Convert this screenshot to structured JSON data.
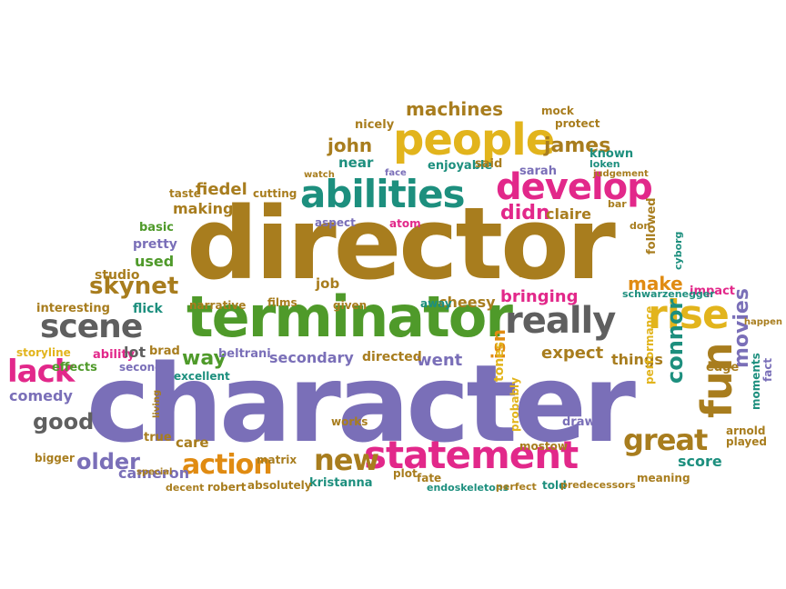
{
  "palette": {
    "brown": "#a87d1e",
    "purple": "#7a6fb8",
    "green": "#4f9a2a",
    "teal": "#1d8f7e",
    "magenta": "#e2288a",
    "orange": "#e08b12",
    "gold": "#e2b41c",
    "gray": "#5f5f5f",
    "lime": "#7ab020"
  },
  "words": [
    {
      "text": "character",
      "color": "purple"
    },
    {
      "text": "director",
      "color": "brown"
    },
    {
      "text": "terminator",
      "color": "green"
    },
    {
      "text": "people",
      "color": "gold"
    },
    {
      "text": "abilities",
      "color": "teal"
    },
    {
      "text": "develop",
      "color": "magenta"
    },
    {
      "text": "statement",
      "color": "magenta"
    },
    {
      "text": "really",
      "color": "gray"
    },
    {
      "text": "rise",
      "color": "gold"
    },
    {
      "text": "fun",
      "color": "brown"
    },
    {
      "text": "scene",
      "color": "gray"
    },
    {
      "text": "lack",
      "color": "magenta"
    },
    {
      "text": "action",
      "color": "orange"
    },
    {
      "text": "great",
      "color": "brown"
    },
    {
      "text": "new",
      "color": "brown"
    },
    {
      "text": "skynet",
      "color": "brown"
    },
    {
      "text": "machines",
      "color": "brown"
    },
    {
      "text": "john",
      "color": "brown"
    },
    {
      "text": "james",
      "color": "brown"
    },
    {
      "text": "connor",
      "color": "teal"
    },
    {
      "text": "movies",
      "color": "purple"
    },
    {
      "text": "make",
      "color": "orange"
    },
    {
      "text": "good",
      "color": "gray"
    },
    {
      "text": "older",
      "color": "purple"
    },
    {
      "text": "way",
      "color": "green"
    },
    {
      "text": "didn",
      "color": "magenta"
    },
    {
      "text": "claire",
      "color": "brown"
    },
    {
      "text": "fiedel",
      "color": "brown"
    },
    {
      "text": "making",
      "color": "brown"
    },
    {
      "text": "bringing",
      "color": "magenta"
    },
    {
      "text": "expect",
      "color": "brown"
    },
    {
      "text": "things",
      "color": "brown"
    },
    {
      "text": "went",
      "color": "purple"
    },
    {
      "text": "secondary",
      "color": "purple"
    },
    {
      "text": "kristanna",
      "color": "teal"
    },
    {
      "text": "cameron",
      "color": "purple"
    },
    {
      "text": "comedy",
      "color": "purple"
    },
    {
      "text": "isn",
      "color": "orange"
    },
    {
      "text": "score",
      "color": "teal"
    },
    {
      "text": "nicely",
      "color": "brown"
    },
    {
      "text": "near",
      "color": "teal"
    },
    {
      "text": "enjoyable",
      "color": "teal"
    },
    {
      "text": "said",
      "color": "brown"
    },
    {
      "text": "mock",
      "color": "brown"
    },
    {
      "text": "protect",
      "color": "brown"
    },
    {
      "text": "known",
      "color": "teal"
    },
    {
      "text": "loken",
      "color": "teal"
    },
    {
      "text": "sarah",
      "color": "purple"
    },
    {
      "text": "taste",
      "color": "brown"
    },
    {
      "text": "cutting",
      "color": "brown"
    },
    {
      "text": "basic",
      "color": "green"
    },
    {
      "text": "pretty",
      "color": "purple"
    },
    {
      "text": "used",
      "color": "green"
    },
    {
      "text": "studio",
      "color": "brown"
    },
    {
      "text": "interesting",
      "color": "brown"
    },
    {
      "text": "flick",
      "color": "teal"
    },
    {
      "text": "narrative",
      "color": "brown"
    },
    {
      "text": "films",
      "color": "brown"
    },
    {
      "text": "job",
      "color": "brown"
    },
    {
      "text": "given",
      "color": "brown"
    },
    {
      "text": "cheesy",
      "color": "brown"
    },
    {
      "text": "away",
      "color": "teal"
    },
    {
      "text": "tones",
      "color": "gold"
    },
    {
      "text": "impact",
      "color": "magenta"
    },
    {
      "text": "edge",
      "color": "brown"
    },
    {
      "text": "storyline",
      "color": "gold"
    },
    {
      "text": "ability",
      "color": "magenta"
    },
    {
      "text": "effects",
      "color": "green"
    },
    {
      "text": "lot",
      "color": "gray"
    },
    {
      "text": "brad",
      "color": "brown"
    },
    {
      "text": "second",
      "color": "purple"
    },
    {
      "text": "excellent",
      "color": "teal"
    },
    {
      "text": "beltrani",
      "color": "purple"
    },
    {
      "text": "directed",
      "color": "brown"
    },
    {
      "text": "care",
      "color": "brown"
    },
    {
      "text": "true",
      "color": "brown"
    },
    {
      "text": "works",
      "color": "brown"
    },
    {
      "text": "matrix",
      "color": "brown"
    },
    {
      "text": "absolutely",
      "color": "brown"
    },
    {
      "text": "robert",
      "color": "brown"
    },
    {
      "text": "decent",
      "color": "brown"
    },
    {
      "text": "endoskeletons",
      "color": "teal"
    },
    {
      "text": "perfect",
      "color": "brown"
    },
    {
      "text": "told",
      "color": "teal"
    },
    {
      "text": "predecessors",
      "color": "brown"
    },
    {
      "text": "arnold",
      "color": "brown"
    },
    {
      "text": "played",
      "color": "brown"
    },
    {
      "text": "mostow",
      "color": "brown"
    },
    {
      "text": "draw",
      "color": "purple"
    },
    {
      "text": "meaning",
      "color": "brown"
    },
    {
      "text": "performance",
      "color": "gold"
    },
    {
      "text": "schwarzenegger",
      "color": "teal"
    },
    {
      "text": "probably",
      "color": "gold"
    },
    {
      "text": "followed",
      "color": "brown"
    },
    {
      "text": "atom",
      "color": "magenta"
    },
    {
      "text": "aspect",
      "color": "purple"
    },
    {
      "text": "plot",
      "color": "brown"
    },
    {
      "text": "fact",
      "color": "purple"
    },
    {
      "text": "moments",
      "color": "teal"
    },
    {
      "text": "bigger",
      "color": "brown"
    },
    {
      "text": "seen",
      "color": "brown"
    },
    {
      "text": "judgement",
      "color": "brown"
    },
    {
      "text": "living",
      "color": "brown"
    },
    {
      "text": "fate",
      "color": "brown"
    },
    {
      "text": "don",
      "color": "brown"
    },
    {
      "text": "cyborg",
      "color": "teal"
    },
    {
      "text": "bar",
      "color": "brown"
    },
    {
      "text": "special",
      "color": "brown"
    },
    {
      "text": "face",
      "color": "purple"
    },
    {
      "text": "watch",
      "color": "brown"
    },
    {
      "text": "happen",
      "color": "brown"
    }
  ]
}
